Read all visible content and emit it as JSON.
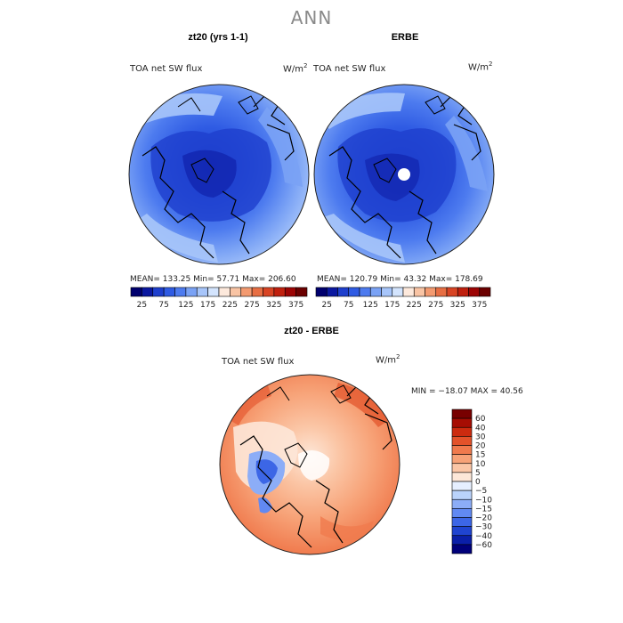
{
  "figure": {
    "main_title": "ANN",
    "top_left": {
      "title": "zt20 (yrs 1-1)",
      "variable": "TOA net SW flux",
      "units": "W/m",
      "units_sup": "2",
      "stats": "MEAN= 133.25  Min=  57.71  Max= 206.60"
    },
    "top_right": {
      "title": "ERBE",
      "variable": "TOA net SW flux",
      "units": "W/m",
      "units_sup": "2",
      "stats": "MEAN= 120.79  Min=  43.32  Max= 178.69"
    },
    "bottom": {
      "title": "zt20 - ERBE",
      "variable": "TOA net SW flux",
      "units": "W/m",
      "units_sup": "2",
      "stats": "MIN = −18.07 MAX =  40.56"
    }
  },
  "chart_data": [
    {
      "type": "heatmap",
      "title": "zt20 (yrs 1-1)",
      "projection": "north-polar stereographic",
      "variable": "TOA net SW flux",
      "units": "W/m^2",
      "mean": 133.25,
      "min": 57.71,
      "max": 206.6,
      "colorbar": {
        "orientation": "horizontal",
        "levels": [
          25,
          50,
          75,
          100,
          125,
          150,
          175,
          200,
          225,
          250,
          275,
          300,
          325,
          350,
          375
        ],
        "tick_labels": [
          "25",
          "75",
          "125",
          "175",
          "225",
          "275",
          "325",
          "375"
        ],
        "colors": [
          "#00006e",
          "#0b18a0",
          "#1e3fcd",
          "#2f5be3",
          "#4d7bef",
          "#7aa2f5",
          "#a7c5fa",
          "#d3e4fd",
          "#fde9dc",
          "#f9c4a4",
          "#f39a70",
          "#e76e43",
          "#d84424",
          "#c0200e",
          "#9c0404",
          "#6b0000"
        ]
      }
    },
    {
      "type": "heatmap",
      "title": "ERBE",
      "projection": "north-polar stereographic",
      "variable": "TOA net SW flux",
      "units": "W/m^2",
      "mean": 120.79,
      "min": 43.32,
      "max": 178.69,
      "colorbar": {
        "orientation": "horizontal",
        "levels": [
          25,
          50,
          75,
          100,
          125,
          150,
          175,
          200,
          225,
          250,
          275,
          300,
          325,
          350,
          375
        ],
        "tick_labels": [
          "25",
          "75",
          "125",
          "175",
          "225",
          "275",
          "325",
          "375"
        ],
        "colors": [
          "#00006e",
          "#0b18a0",
          "#1e3fcd",
          "#2f5be3",
          "#4d7bef",
          "#7aa2f5",
          "#a7c5fa",
          "#d3e4fd",
          "#fde9dc",
          "#f9c4a4",
          "#f39a70",
          "#e76e43",
          "#d84424",
          "#c0200e",
          "#9c0404",
          "#6b0000"
        ]
      }
    },
    {
      "type": "heatmap",
      "title": "zt20 - ERBE",
      "projection": "north-polar stereographic",
      "variable": "TOA net SW flux",
      "units": "W/m^2",
      "min": -18.07,
      "max": 40.56,
      "colorbar": {
        "orientation": "vertical",
        "levels": [
          -60,
          -40,
          -30,
          -20,
          -15,
          -10,
          -5,
          0,
          5,
          10,
          15,
          20,
          30,
          40,
          60
        ],
        "tick_labels": [
          "60",
          "40",
          "30",
          "20",
          "15",
          "10",
          "5",
          "0",
          "−5",
          "−10",
          "−15",
          "−20",
          "−30",
          "−40",
          "−60"
        ],
        "colors": [
          "#00007a",
          "#0a1fa8",
          "#1f44d0",
          "#3c66e6",
          "#6189f2",
          "#8cadf7",
          "#bad3fb",
          "#e6efff",
          "#fde7d8",
          "#fbc6a6",
          "#f7a277",
          "#f07a4d",
          "#e3522a",
          "#cc2b0f",
          "#a60d03",
          "#780000"
        ]
      }
    }
  ]
}
